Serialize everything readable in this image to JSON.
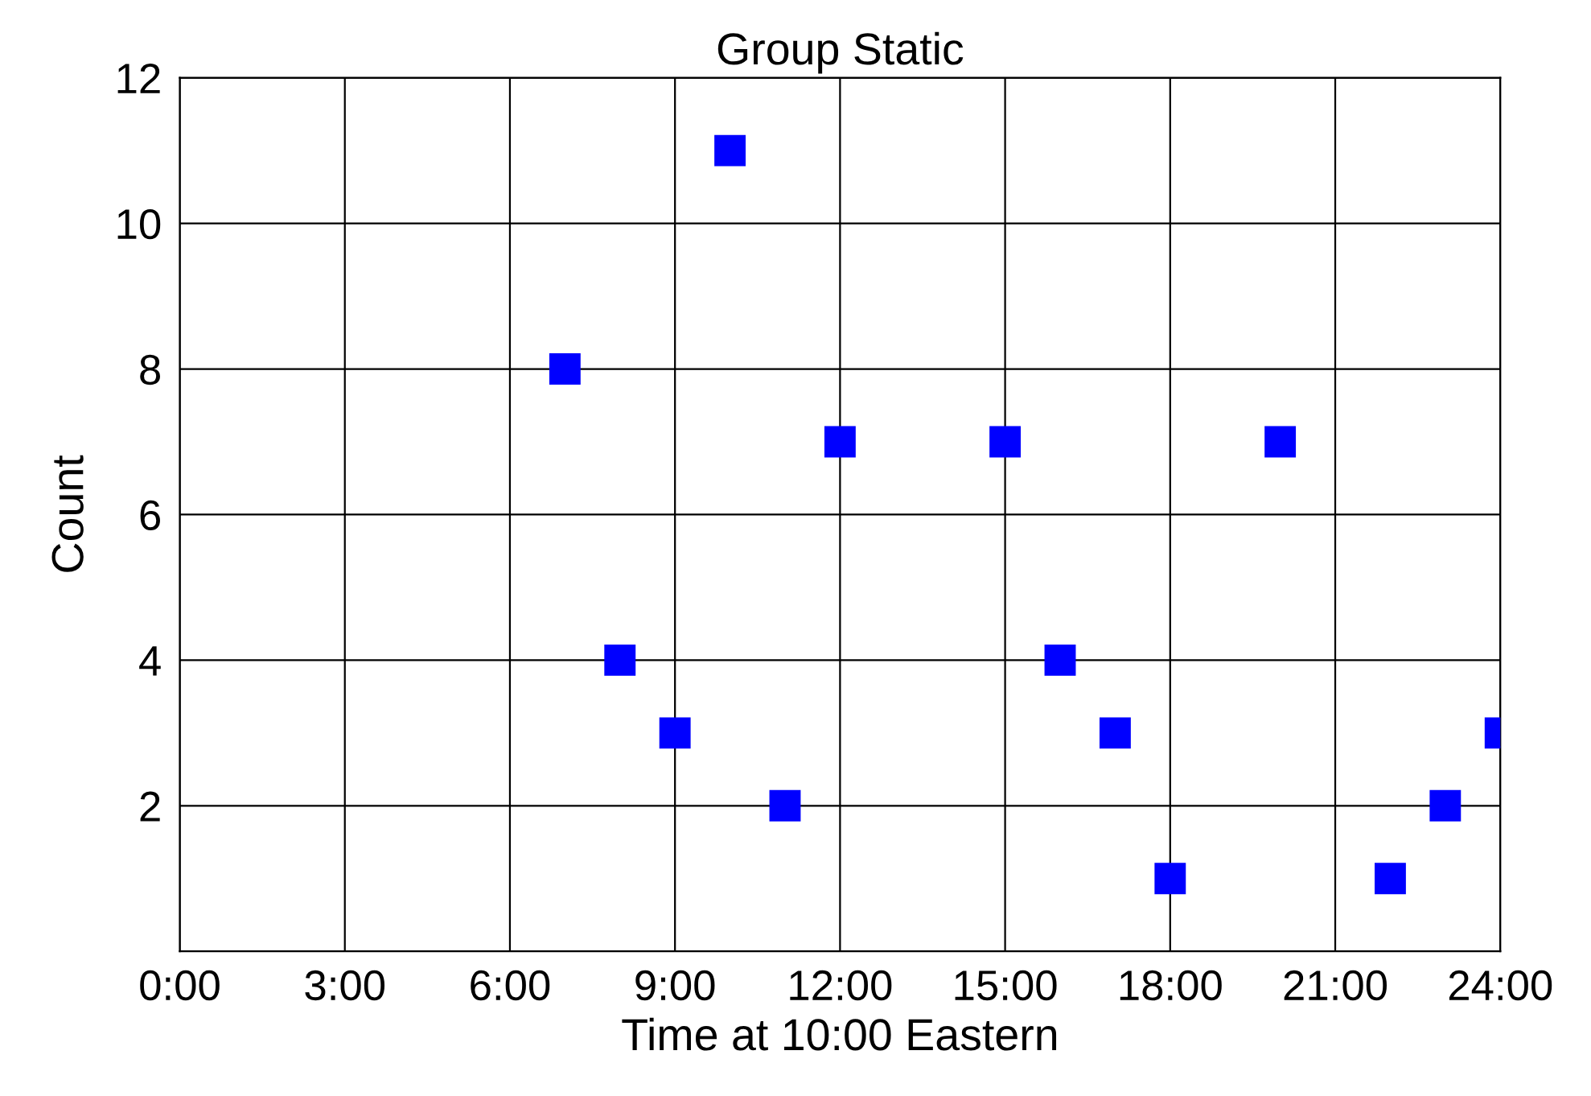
{
  "chart_data": {
    "type": "scatter",
    "title": "Group Static",
    "xlabel": "Time at 10:00 Eastern",
    "ylabel": "Count",
    "x": [
      7,
      8,
      9,
      10,
      11,
      12,
      15,
      16,
      17,
      18,
      20,
      22,
      23,
      24
    ],
    "series": [
      {
        "color": "#0000ff",
        "values": [
          8,
          4,
          3,
          11,
          2,
          7,
          7,
          4,
          3,
          1,
          7,
          1,
          2,
          3
        ]
      }
    ],
    "xlim": [
      0,
      24
    ],
    "xticks": [
      {
        "value": 0,
        "label": "0:00"
      },
      {
        "value": 3,
        "label": "3:00"
      },
      {
        "value": 6,
        "label": "6:00"
      },
      {
        "value": 9,
        "label": "9:00"
      },
      {
        "value": 12,
        "label": "12:00"
      },
      {
        "value": 15,
        "label": "15:00"
      },
      {
        "value": 18,
        "label": "18:00"
      },
      {
        "value": 21,
        "label": "21:00"
      },
      {
        "value": 24,
        "label": "24:00"
      }
    ],
    "ylim": [
      0,
      12
    ],
    "yticks": [
      2,
      4,
      6,
      8,
      10,
      12
    ],
    "grid": true,
    "marker": "square",
    "legend": false
  }
}
